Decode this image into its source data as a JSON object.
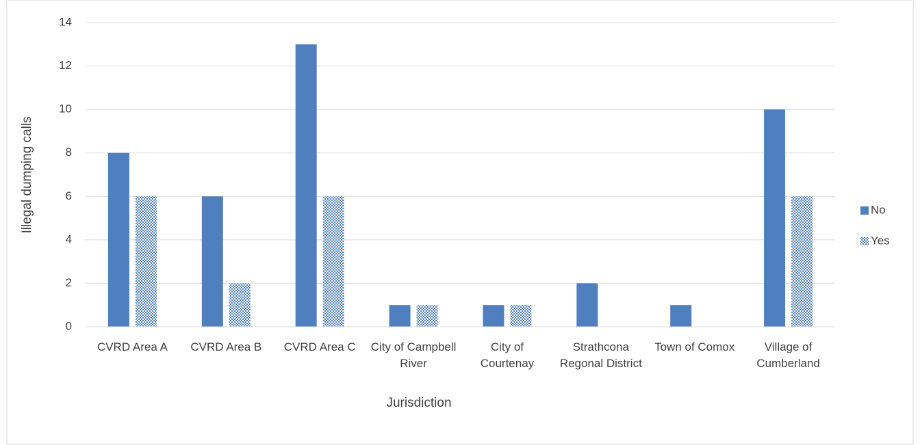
{
  "chart_data": {
    "type": "bar",
    "categories": [
      "CVRD Area A",
      "CVRD Area B",
      "CVRD Area C",
      "City of Campbell River",
      "City of Courtenay",
      "Strathcona Regonal District",
      "Town of Comox",
      "Village of Cumberland"
    ],
    "series": [
      {
        "name": "No",
        "color": "#4f7fbf",
        "values": [
          8,
          6,
          13,
          1,
          1,
          2,
          1,
          10
        ]
      },
      {
        "name": "Yes",
        "color": "#4f7fbf",
        "values": [
          6,
          2,
          6,
          1,
          1,
          0,
          0,
          6
        ]
      }
    ],
    "xlabel": "Jurisdiction",
    "ylabel": "Illegal dumping calls",
    "ylim": [
      0,
      14
    ],
    "yticks": [
      0,
      2,
      4,
      6,
      8,
      10,
      12,
      14
    ],
    "grid": true,
    "legend": "right"
  }
}
